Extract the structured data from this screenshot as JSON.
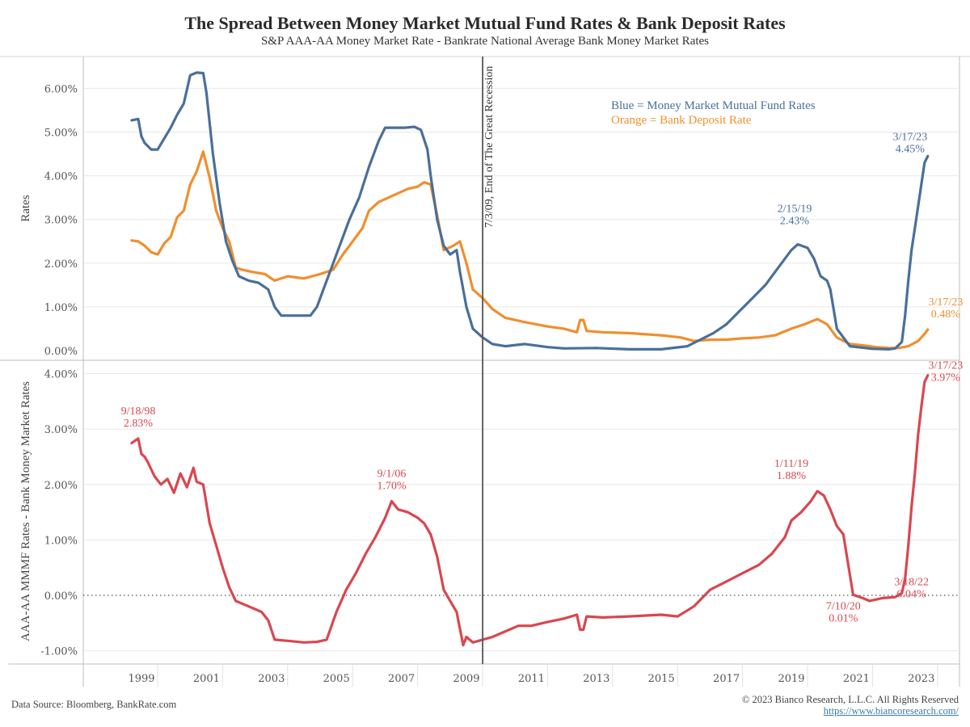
{
  "header": {
    "title": "The Spread Between Money Market Mutual Fund Rates & Bank Deposit Rates",
    "subtitle": "S&P AAA-AA Money Market Rate - Bankrate National Average Bank Money Market Rates"
  },
  "footer": {
    "source": "Data Source: Bloomberg, BankRate.com",
    "copyright": "© 2023 Bianco Research, L.L.C. All Rights Reserved",
    "url": "https://www.biancoresearch.com/"
  },
  "colors": {
    "blue": "#4a6f9a",
    "orange": "#ef8f2e",
    "red": "#d9474f",
    "gridline": "#e8e8e8",
    "axis": "#bdbdbd",
    "event_line": "#555555"
  },
  "chart_data": [
    {
      "type": "line",
      "panel": "top",
      "ylabel": "Rates",
      "ylim": [
        0,
        6.4
      ],
      "yticks": [
        0,
        1,
        2,
        3,
        4,
        5,
        6
      ],
      "ytick_labels": [
        "0.00%",
        "1.00%",
        "2.00%",
        "3.00%",
        "4.00%",
        "5.00%",
        "6.00%"
      ],
      "grid": true,
      "legend_position": "top-right",
      "legend": [
        {
          "text": "Blue = Money Market Mutual Fund Rates",
          "color": "blue"
        },
        {
          "text": "Orange = Bank Deposit Rate",
          "color": "orange"
        }
      ],
      "series": [
        {
          "name": "Money Market Mutual Fund Rates",
          "color": "blue",
          "x": [
            1998.7,
            1998.9,
            1999.0,
            1999.1,
            1999.3,
            1999.5,
            1999.7,
            1999.9,
            2000.1,
            2000.3,
            2000.5,
            2000.7,
            2000.9,
            2001.0,
            2001.2,
            2001.4,
            2001.6,
            2001.8,
            2002.0,
            2002.3,
            2002.6,
            2002.9,
            2003.1,
            2003.3,
            2003.6,
            2003.9,
            2004.2,
            2004.4,
            2004.6,
            2004.8,
            2005.1,
            2005.4,
            2005.7,
            2006.0,
            2006.3,
            2006.5,
            2006.8,
            2007.1,
            2007.4,
            2007.6,
            2007.8,
            2007.9,
            2008.1,
            2008.3,
            2008.5,
            2008.7,
            2008.8,
            2009.0,
            2009.2,
            2009.5,
            2009.8,
            2010.2,
            2010.8,
            2011.5,
            2012.0,
            2013.0,
            2014.0,
            2015.0,
            2015.8,
            2016.2,
            2016.6,
            2017.0,
            2017.4,
            2017.8,
            2018.2,
            2018.6,
            2019.0,
            2019.2,
            2019.5,
            2019.7,
            2019.9,
            2020.1,
            2020.2,
            2020.4,
            2020.8,
            2021.5,
            2022.0,
            2022.2,
            2022.4,
            2022.5,
            2022.6,
            2022.7,
            2022.8,
            2022.9,
            2023.0,
            2023.1,
            2023.2
          ],
          "y": [
            5.27,
            5.3,
            4.9,
            4.75,
            4.6,
            4.6,
            4.85,
            5.1,
            5.4,
            5.65,
            6.3,
            6.36,
            6.35,
            5.9,
            4.5,
            3.4,
            2.5,
            2.05,
            1.7,
            1.6,
            1.55,
            1.4,
            1.0,
            0.8,
            0.8,
            0.8,
            0.8,
            1.0,
            1.4,
            1.8,
            2.4,
            3.0,
            3.5,
            4.2,
            4.8,
            5.1,
            5.1,
            5.1,
            5.12,
            5.05,
            4.6,
            4.0,
            3.0,
            2.4,
            2.2,
            2.3,
            1.8,
            1.0,
            0.5,
            0.3,
            0.15,
            0.1,
            0.15,
            0.08,
            0.05,
            0.06,
            0.03,
            0.03,
            0.1,
            0.25,
            0.4,
            0.6,
            0.9,
            1.2,
            1.5,
            1.9,
            2.3,
            2.43,
            2.35,
            2.1,
            1.7,
            1.6,
            1.4,
            0.5,
            0.1,
            0.04,
            0.03,
            0.05,
            0.2,
            0.8,
            1.6,
            2.3,
            2.8,
            3.3,
            3.8,
            4.3,
            4.45
          ]
        },
        {
          "name": "Bank Deposit Rate",
          "color": "orange",
          "x": [
            1998.7,
            1998.9,
            1999.1,
            1999.3,
            1999.5,
            1999.7,
            1999.9,
            2000.1,
            2000.3,
            2000.5,
            2000.7,
            2000.9,
            2001.1,
            2001.3,
            2001.5,
            2001.7,
            2001.9,
            2002.1,
            2002.4,
            2002.8,
            2003.1,
            2003.5,
            2004.0,
            2004.5,
            2004.9,
            2005.2,
            2005.5,
            2005.8,
            2006.0,
            2006.3,
            2006.6,
            2006.9,
            2007.2,
            2007.5,
            2007.7,
            2007.9,
            2008.1,
            2008.3,
            2008.6,
            2008.8,
            2009.0,
            2009.2,
            2009.5,
            2009.8,
            2010.2,
            2010.8,
            2011.5,
            2012.0,
            2012.4,
            2012.5,
            2012.6,
            2012.7,
            2013.2,
            2014.0,
            2015.0,
            2015.6,
            2016.0,
            2016.5,
            2017.0,
            2017.5,
            2018.0,
            2018.5,
            2019.0,
            2019.4,
            2019.8,
            2020.1,
            2020.4,
            2020.8,
            2021.2,
            2021.6,
            2022.0,
            2022.3,
            2022.6,
            2022.9,
            2023.1,
            2023.2
          ],
          "y": [
            2.52,
            2.5,
            2.4,
            2.25,
            2.2,
            2.45,
            2.6,
            3.05,
            3.2,
            3.8,
            4.1,
            4.55,
            3.95,
            3.2,
            2.8,
            2.5,
            1.9,
            1.85,
            1.8,
            1.75,
            1.6,
            1.7,
            1.65,
            1.75,
            1.85,
            2.2,
            2.5,
            2.8,
            3.2,
            3.4,
            3.5,
            3.6,
            3.7,
            3.75,
            3.85,
            3.8,
            3.1,
            2.3,
            2.4,
            2.5,
            2.0,
            1.4,
            1.2,
            0.95,
            0.75,
            0.65,
            0.55,
            0.5,
            0.42,
            0.7,
            0.7,
            0.45,
            0.42,
            0.4,
            0.35,
            0.3,
            0.22,
            0.25,
            0.25,
            0.28,
            0.3,
            0.35,
            0.5,
            0.6,
            0.72,
            0.6,
            0.3,
            0.15,
            0.12,
            0.08,
            0.06,
            0.06,
            0.1,
            0.22,
            0.38,
            0.48
          ]
        }
      ],
      "annotations": [
        {
          "text": [
            "2/15/19",
            "2.43%"
          ],
          "x": 2019.1,
          "y": 2.43,
          "color": "blue"
        },
        {
          "text": [
            "3/17/23",
            "4.45%"
          ],
          "x": 2023.2,
          "y": 4.45,
          "color": "blue"
        },
        {
          "text": [
            "3/17/23",
            "0.48%"
          ],
          "x": 2023.2,
          "y": 0.48,
          "color": "orange"
        }
      ]
    },
    {
      "type": "line",
      "panel": "bottom",
      "ylabel": "AAA-AA MMMF Rates - Bank Money Market Rates",
      "ylim": [
        -1.2,
        4.1
      ],
      "yticks": [
        -1,
        0,
        1,
        2,
        3,
        4
      ],
      "ytick_labels": [
        "-1.00%",
        "0.00%",
        "1.00%",
        "2.00%",
        "3.00%",
        "4.00%"
      ],
      "zero_line": "dotted",
      "grid": true,
      "xlabel": "",
      "xticks": [
        1999,
        2001,
        2003,
        2005,
        2007,
        2009,
        2011,
        2013,
        2015,
        2017,
        2019,
        2021,
        2023
      ],
      "xtick_labels": [
        "1999",
        "2001",
        "2003",
        "2005",
        "2007",
        "2009",
        "2011",
        "2013",
        "2015",
        "2017",
        "2019",
        "2021",
        "2023"
      ],
      "series": [
        {
          "name": "AAA-AA MMMF Rates - Bank Money Market Rates",
          "color": "red",
          "x": [
            1998.7,
            1998.9,
            1999.0,
            1999.1,
            1999.2,
            1999.4,
            1999.6,
            1999.8,
            2000.0,
            2000.2,
            2000.4,
            2000.6,
            2000.7,
            2000.9,
            2001.1,
            2001.3,
            2001.5,
            2001.7,
            2001.9,
            2002.1,
            2002.3,
            2002.5,
            2002.7,
            2002.9,
            2003.1,
            2003.5,
            2004.0,
            2004.4,
            2004.7,
            2005.0,
            2005.3,
            2005.6,
            2005.9,
            2006.2,
            2006.5,
            2006.7,
            2006.9,
            2007.2,
            2007.5,
            2007.7,
            2007.9,
            2008.1,
            2008.3,
            2008.5,
            2008.7,
            2008.9,
            2009.0,
            2009.2,
            2009.5,
            2009.8,
            2010.2,
            2010.6,
            2011.0,
            2011.5,
            2012.0,
            2012.4,
            2012.5,
            2012.6,
            2012.7,
            2013.2,
            2014.0,
            2015.0,
            2015.5,
            2016.0,
            2016.5,
            2017.0,
            2017.5,
            2018.0,
            2018.4,
            2018.8,
            2019.0,
            2019.3,
            2019.6,
            2019.8,
            2020.0,
            2020.2,
            2020.4,
            2020.6,
            2020.9,
            2021.2,
            2021.4,
            2021.8,
            2022.2,
            2022.4,
            2022.5,
            2022.6,
            2022.7,
            2022.8,
            2022.9,
            2023.0,
            2023.1,
            2023.2
          ],
          "y": [
            2.75,
            2.83,
            2.55,
            2.5,
            2.4,
            2.15,
            2.0,
            2.1,
            1.85,
            2.2,
            1.95,
            2.3,
            2.05,
            2.0,
            1.3,
            0.9,
            0.5,
            0.15,
            -0.1,
            -0.15,
            -0.2,
            -0.25,
            -0.3,
            -0.45,
            -0.8,
            -0.82,
            -0.85,
            -0.84,
            -0.8,
            -0.3,
            0.1,
            0.4,
            0.75,
            1.05,
            1.4,
            1.7,
            1.55,
            1.5,
            1.4,
            1.3,
            1.1,
            0.7,
            0.1,
            -0.1,
            -0.3,
            -0.9,
            -0.75,
            -0.85,
            -0.8,
            -0.75,
            -0.65,
            -0.55,
            -0.55,
            -0.48,
            -0.42,
            -0.35,
            -0.62,
            -0.62,
            -0.38,
            -0.4,
            -0.38,
            -0.35,
            -0.38,
            -0.2,
            0.1,
            0.25,
            0.4,
            0.55,
            0.75,
            1.05,
            1.35,
            1.5,
            1.7,
            1.88,
            1.8,
            1.55,
            1.25,
            1.1,
            0.01,
            -0.05,
            -0.1,
            -0.05,
            -0.03,
            0.04,
            0.3,
            0.9,
            1.6,
            2.2,
            2.9,
            3.4,
            3.85,
            3.97
          ]
        }
      ],
      "annotations": [
        {
          "text": [
            "9/18/98",
            "2.83%"
          ],
          "x": 1998.9,
          "y": 2.83,
          "color": "red"
        },
        {
          "text": [
            "9/1/06",
            "1.70%"
          ],
          "x": 2006.7,
          "y": 1.7,
          "color": "red"
        },
        {
          "text": [
            "1/11/19",
            "1.88%"
          ],
          "x": 2019.0,
          "y": 1.88,
          "color": "red"
        },
        {
          "text": [
            "7/10/20",
            "0.01%"
          ],
          "x": 2020.6,
          "y": 0.01,
          "color": "red"
        },
        {
          "text": [
            "3/18/22",
            "0.04%"
          ],
          "x": 2022.2,
          "y": 0.04,
          "color": "red"
        },
        {
          "text": [
            "3/17/23",
            "3.97%"
          ],
          "x": 2023.2,
          "y": 3.97,
          "color": "red"
        }
      ]
    }
  ],
  "event_marker": {
    "label": "7/3/09, End of The Great Recession",
    "x": 2009.5
  }
}
